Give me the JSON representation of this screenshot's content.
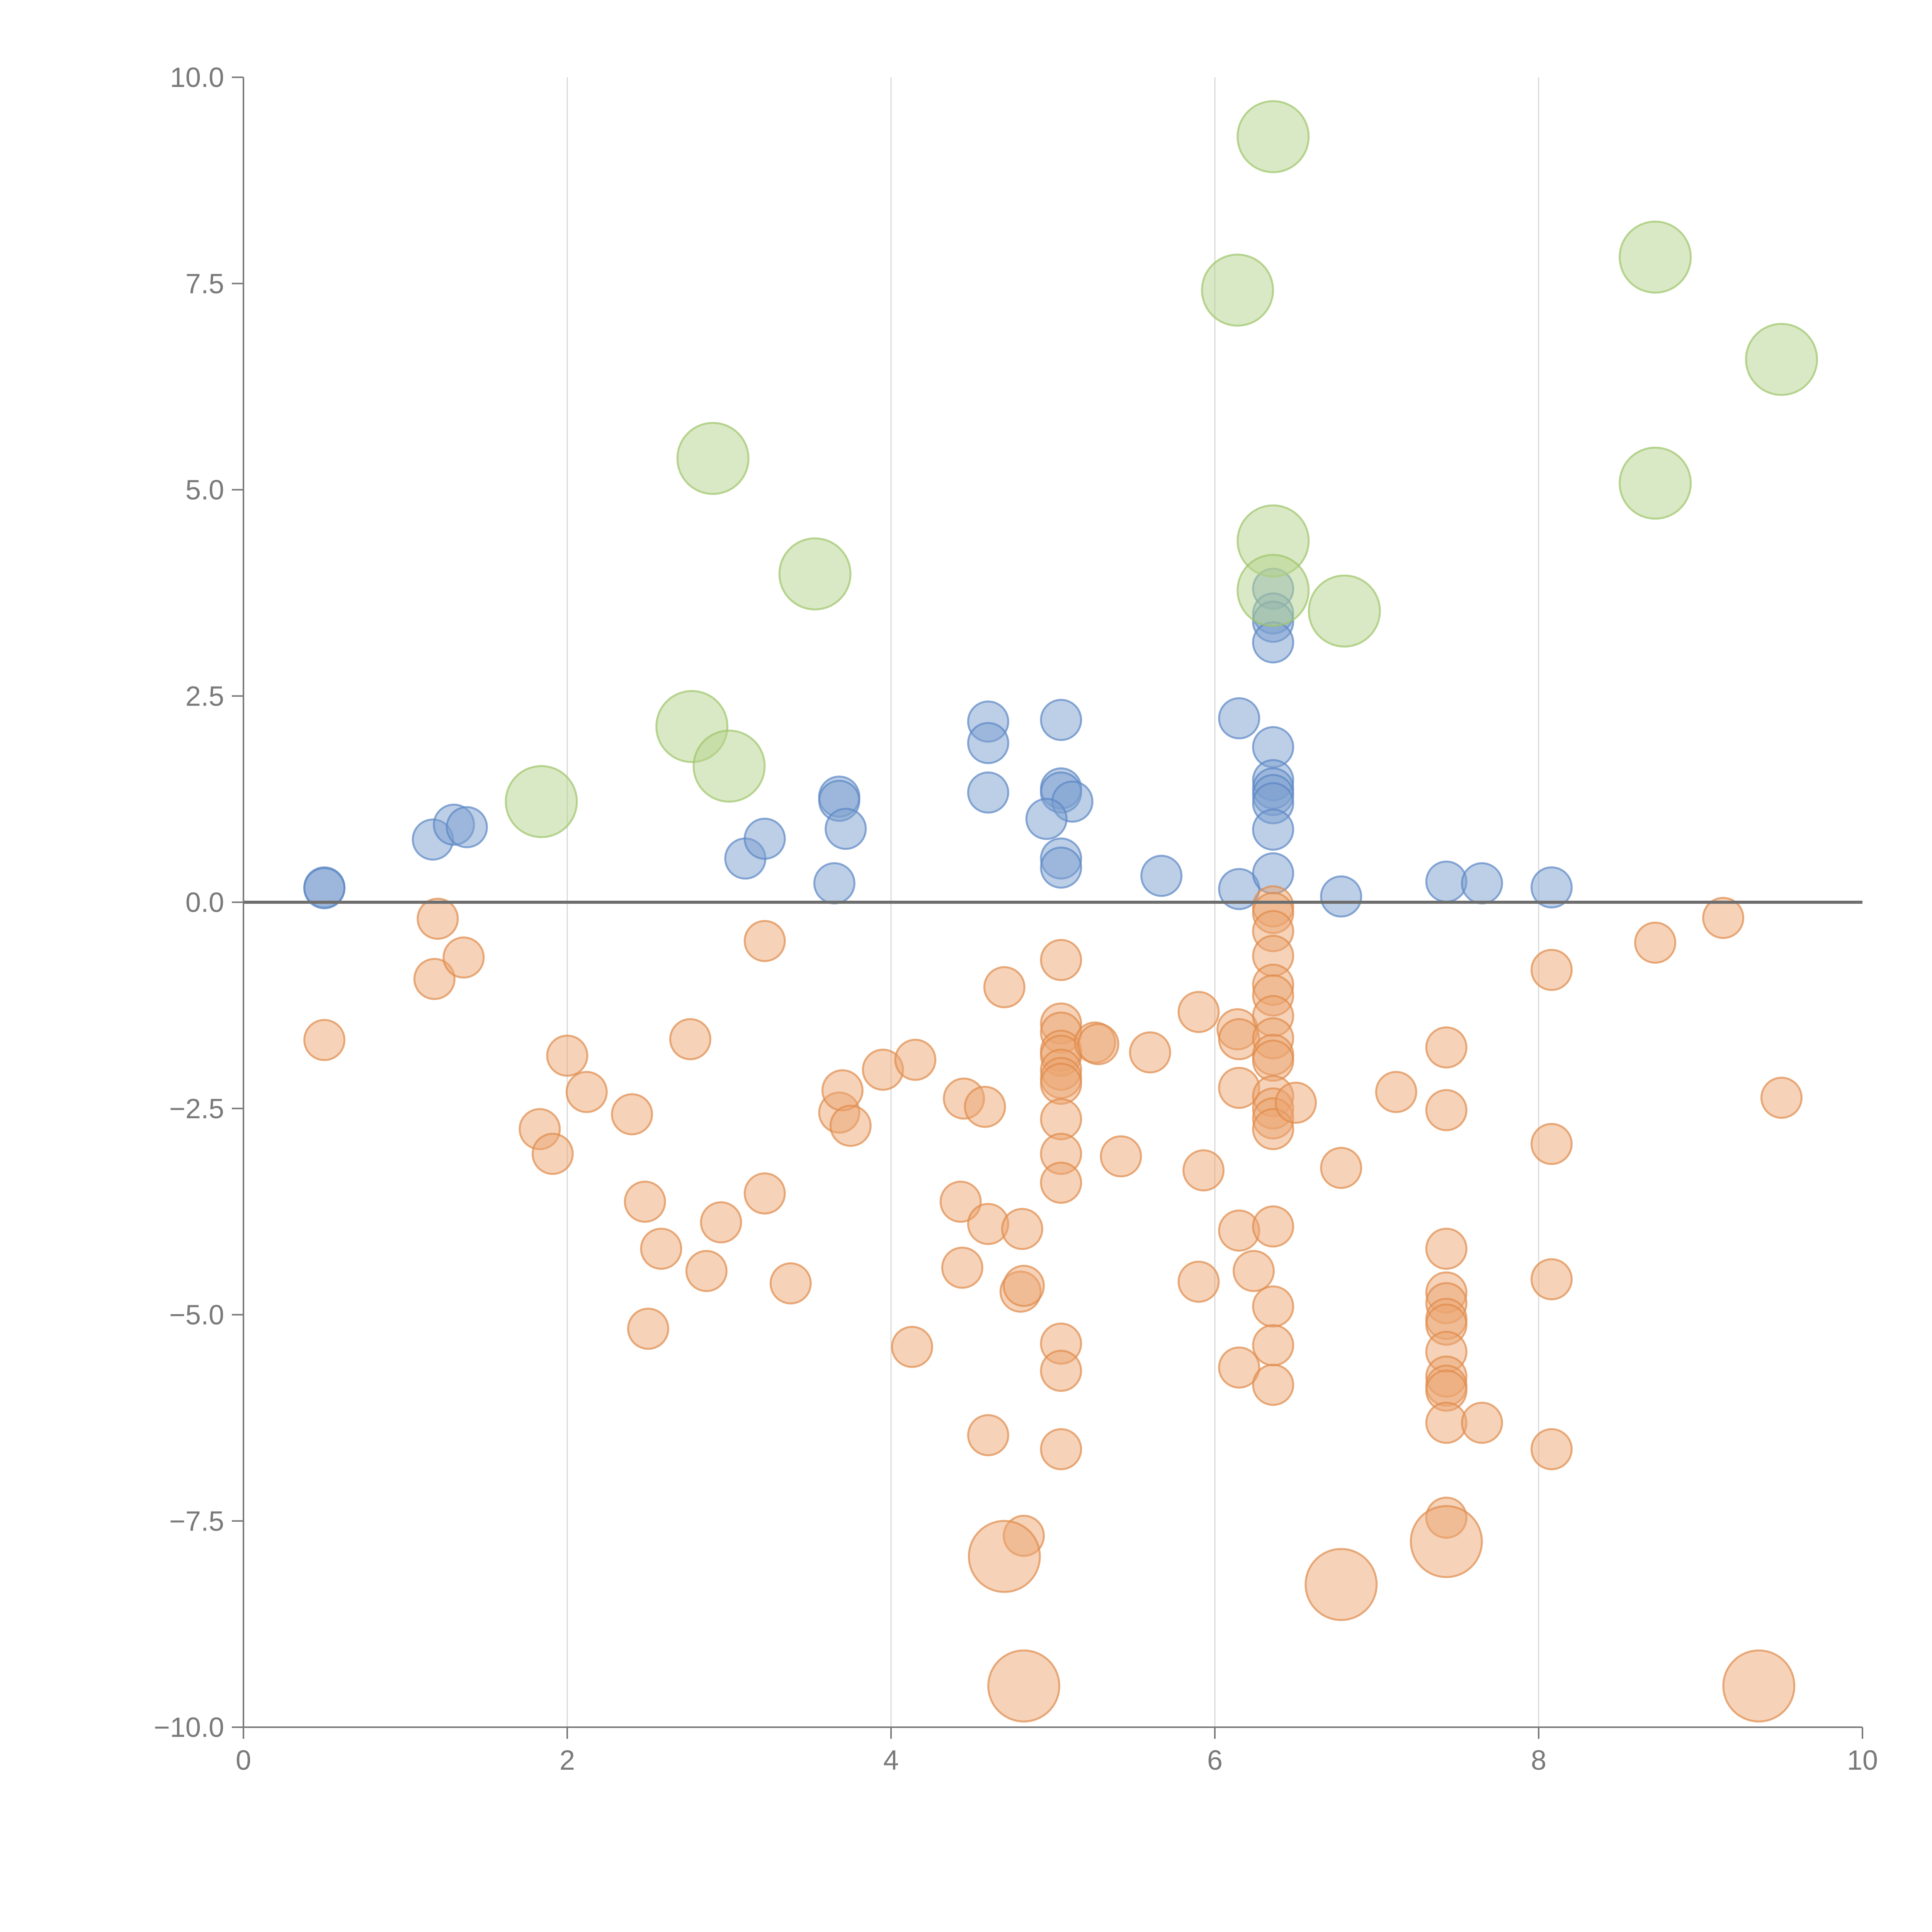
{
  "colors": {
    "blue": "#7b9fd0",
    "blue_stroke": "#5b86c4",
    "orange": "#eba571",
    "orange_stroke": "#e08a4a",
    "green": "#b6d48c",
    "green_stroke": "#9cc46a"
  },
  "chart_data": {
    "type": "scatter",
    "title": "",
    "xlabel": "",
    "ylabel": "",
    "xlim": [
      0,
      10
    ],
    "ylim": [
      -10,
      10
    ],
    "x_ticks": [
      0,
      2,
      4,
      6,
      8,
      10
    ],
    "x_tick_labels": [
      "0",
      "2",
      "4",
      "6",
      "8",
      "10"
    ],
    "y_ticks": [
      10,
      7.5,
      5,
      2.5,
      0,
      -2.5,
      -5,
      -7.5,
      -10
    ],
    "y_tick_labels": [
      "10.0",
      "7.5",
      "5.0",
      "2.5",
      "0.0",
      "−2.5",
      "−5.0",
      "−7.5",
      "−10.0"
    ],
    "vertical_grid": true,
    "horizontal_zero_line": true,
    "series": [
      {
        "name": "blue",
        "color_key": "blue",
        "size": "small",
        "points": [
          [
            0.5,
            0.18
          ],
          [
            0.5,
            0.17
          ],
          [
            1.17,
            0.76
          ],
          [
            1.3,
            0.94
          ],
          [
            1.38,
            0.91
          ],
          [
            3.1,
            0.53
          ],
          [
            3.22,
            0.77
          ],
          [
            3.65,
            0.23
          ],
          [
            3.68,
            1.28
          ],
          [
            3.68,
            1.23
          ],
          [
            3.72,
            0.89
          ],
          [
            4.6,
            2.19
          ],
          [
            4.6,
            1.93
          ],
          [
            4.6,
            1.33
          ],
          [
            5.05,
            2.21
          ],
          [
            5.05,
            1.38
          ],
          [
            5.05,
            1.33
          ],
          [
            5.12,
            1.22
          ],
          [
            4.96,
            1.01
          ],
          [
            5.05,
            0.53
          ],
          [
            5.05,
            0.42
          ],
          [
            5.67,
            0.32
          ],
          [
            6.15,
            2.23
          ],
          [
            6.15,
            0.16
          ],
          [
            6.36,
            3.8
          ],
          [
            6.36,
            3.5
          ],
          [
            6.36,
            3.4
          ],
          [
            6.36,
            3.15
          ],
          [
            6.36,
            1.88
          ],
          [
            6.36,
            1.48
          ],
          [
            6.36,
            1.38
          ],
          [
            6.36,
            1.3
          ],
          [
            6.36,
            1.2
          ],
          [
            6.36,
            0.88
          ],
          [
            6.36,
            0.35
          ],
          [
            6.78,
            0.07
          ],
          [
            7.43,
            0.25
          ],
          [
            7.65,
            0.23
          ],
          [
            8.08,
            0.18
          ]
        ]
      },
      {
        "name": "orange",
        "color_key": "orange",
        "size": "small",
        "points": [
          [
            0.5,
            -1.67
          ],
          [
            1.2,
            -0.2
          ],
          [
            1.18,
            -0.93
          ],
          [
            1.36,
            -0.67
          ],
          [
            1.83,
            -2.75
          ],
          [
            1.91,
            -3.05
          ],
          [
            2.0,
            -1.86
          ],
          [
            2.12,
            -2.3
          ],
          [
            2.4,
            -2.57
          ],
          [
            2.48,
            -3.63
          ],
          [
            2.5,
            -5.17
          ],
          [
            2.58,
            -4.2
          ],
          [
            2.76,
            -1.66
          ],
          [
            2.86,
            -4.47
          ],
          [
            2.95,
            -3.88
          ],
          [
            3.22,
            -0.47
          ],
          [
            3.22,
            -3.53
          ],
          [
            3.38,
            -4.62
          ],
          [
            3.68,
            -2.55
          ],
          [
            3.7,
            -2.28
          ],
          [
            3.75,
            -2.71
          ],
          [
            3.95,
            -2.03
          ],
          [
            4.13,
            -5.39
          ],
          [
            4.15,
            -1.91
          ],
          [
            4.43,
            -3.63
          ],
          [
            4.44,
            -4.43
          ],
          [
            4.45,
            -2.38
          ],
          [
            4.58,
            -2.48
          ],
          [
            4.6,
            -3.9
          ],
          [
            4.6,
            -6.46
          ],
          [
            4.7,
            -1.03
          ],
          [
            4.8,
            -4.72
          ],
          [
            4.81,
            -3.96
          ],
          [
            4.82,
            -4.65
          ],
          [
            4.82,
            -7.68
          ],
          [
            5.05,
            -0.7
          ],
          [
            5.05,
            -1.47
          ],
          [
            5.05,
            -1.58
          ],
          [
            5.05,
            -1.8
          ],
          [
            5.05,
            -1.86
          ],
          [
            5.05,
            -2.03
          ],
          [
            5.05,
            -2.13
          ],
          [
            5.05,
            -2.2
          ],
          [
            5.05,
            -2.63
          ],
          [
            5.05,
            -3.05
          ],
          [
            5.05,
            -3.4
          ],
          [
            5.05,
            -5.35
          ],
          [
            5.05,
            -5.68
          ],
          [
            5.05,
            -6.63
          ],
          [
            5.26,
            -1.7
          ],
          [
            5.28,
            -1.72
          ],
          [
            5.42,
            -3.08
          ],
          [
            5.6,
            -1.82
          ],
          [
            5.9,
            -1.33
          ],
          [
            5.93,
            -3.25
          ],
          [
            5.9,
            -4.6
          ],
          [
            6.14,
            -1.54
          ],
          [
            6.15,
            -1.66
          ],
          [
            6.15,
            -2.25
          ],
          [
            6.15,
            -3.98
          ],
          [
            6.15,
            -5.64
          ],
          [
            6.24,
            -4.47
          ],
          [
            6.36,
            -0.05
          ],
          [
            6.36,
            -0.13
          ],
          [
            6.36,
            -0.35
          ],
          [
            6.36,
            -0.65
          ],
          [
            6.36,
            -1.0
          ],
          [
            6.36,
            -1.13
          ],
          [
            6.36,
            -1.38
          ],
          [
            6.36,
            -1.65
          ],
          [
            6.36,
            -1.85
          ],
          [
            6.36,
            -1.92
          ],
          [
            6.36,
            -2.35
          ],
          [
            6.36,
            -2.5
          ],
          [
            6.36,
            -2.62
          ],
          [
            6.36,
            -2.75
          ],
          [
            6.36,
            -3.93
          ],
          [
            6.36,
            -4.9
          ],
          [
            6.36,
            -5.37
          ],
          [
            6.36,
            -5.85
          ],
          [
            6.5,
            -2.43
          ],
          [
            6.78,
            -3.22
          ],
          [
            7.12,
            -2.3
          ],
          [
            7.43,
            -1.76
          ],
          [
            7.43,
            -2.52
          ],
          [
            7.43,
            -4.2
          ],
          [
            7.43,
            -4.73
          ],
          [
            7.43,
            -4.86
          ],
          [
            7.43,
            -5.05
          ],
          [
            7.43,
            -5.12
          ],
          [
            7.43,
            -5.45
          ],
          [
            7.43,
            -5.75
          ],
          [
            7.43,
            -5.86
          ],
          [
            7.43,
            -5.92
          ],
          [
            7.43,
            -6.31
          ],
          [
            7.43,
            -7.46
          ],
          [
            7.65,
            -6.31
          ],
          [
            8.08,
            -0.82
          ],
          [
            8.08,
            -2.93
          ],
          [
            8.08,
            -4.57
          ],
          [
            8.08,
            -6.63
          ],
          [
            8.72,
            -0.49
          ],
          [
            9.14,
            -0.19
          ],
          [
            9.5,
            -2.37
          ]
        ]
      },
      {
        "name": "orange-large",
        "color_key": "orange",
        "size": "large",
        "points": [
          [
            4.7,
            -7.93
          ],
          [
            4.82,
            -9.5
          ],
          [
            6.78,
            -8.27
          ],
          [
            7.43,
            -7.75
          ],
          [
            9.36,
            -9.5
          ]
        ]
      },
      {
        "name": "green",
        "color_key": "green",
        "size": "large",
        "points": [
          [
            1.84,
            1.22
          ],
          [
            2.77,
            2.13
          ],
          [
            3.0,
            1.65
          ],
          [
            2.9,
            5.38
          ],
          [
            3.53,
            3.98
          ],
          [
            6.14,
            7.42
          ],
          [
            6.36,
            9.28
          ],
          [
            6.36,
            4.38
          ],
          [
            6.36,
            3.78
          ],
          [
            6.8,
            3.53
          ],
          [
            8.72,
            7.82
          ],
          [
            8.72,
            5.08
          ],
          [
            9.5,
            6.58
          ]
        ]
      }
    ]
  }
}
